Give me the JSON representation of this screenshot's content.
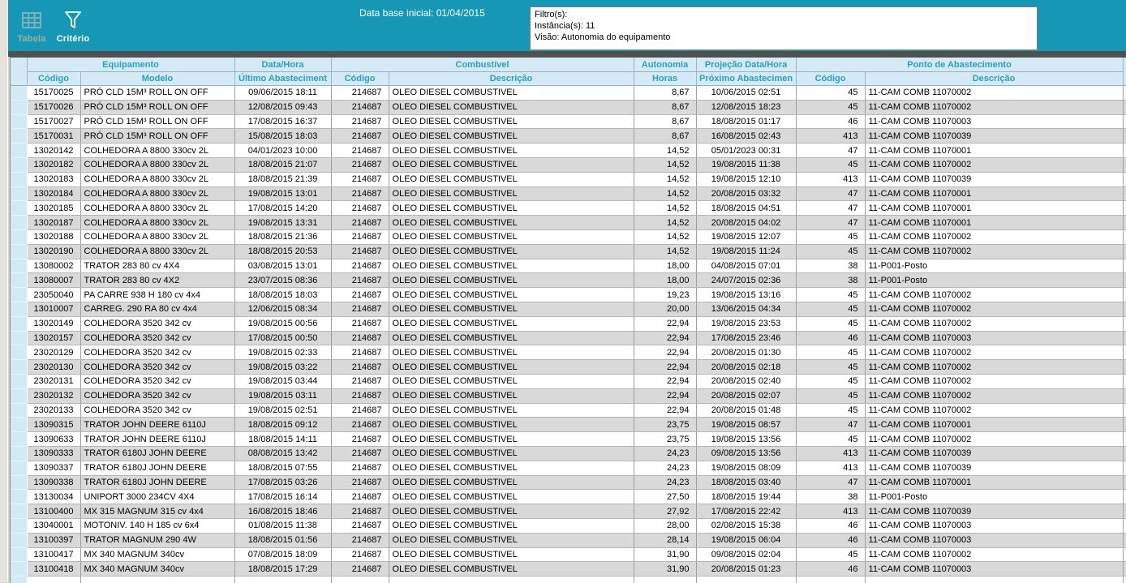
{
  "toolbar": {
    "tabela": "Tabela",
    "criterio": "Critério"
  },
  "topbar": {
    "title": "Data base inicial: 01/04/2015",
    "filter_box": {
      "line1": "Filtro(s):",
      "line2": "Instância(s): 11",
      "line3": "Visão: Autonomia do equipamento"
    }
  },
  "grid": {
    "group_headers": {
      "equipamento": "Equipamento",
      "data_hora": "Data/Hora",
      "combustivel": "Combustível",
      "autonomia": "Autonomia",
      "projecao": "Projeção Data/Hora",
      "ponto": "Ponto de Abastecimento"
    },
    "sub_headers": {
      "equip_codigo": "Código",
      "equip_modelo": "Modelo",
      "ultimo_abastecimento": "Último Abasteciment",
      "comb_codigo": "Código",
      "comb_descricao": "Descrição",
      "autonomia_horas": "Horas",
      "proximo_abastecimento": "Próximo Abastecimen",
      "ponto_codigo": "Código",
      "ponto_descricao": "Descrição"
    },
    "rows": [
      [
        "15170025",
        "PRÓ CLD 15M³ ROLL ON OFF",
        "09/06/2015 18:11",
        "214687",
        "OLEO DIESEL COMBUSTIVEL",
        "8,67",
        "10/06/2015 02:51",
        "45",
        "11-CAM COMB 11070002"
      ],
      [
        "15170026",
        "PRÓ CLD 15M³ ROLL ON OFF",
        "12/08/2015 09:43",
        "214687",
        "OLEO DIESEL COMBUSTIVEL",
        "8,67",
        "12/08/2015 18:23",
        "45",
        "11-CAM COMB 11070002"
      ],
      [
        "15170027",
        "PRÓ CLD 15M³ ROLL ON OFF",
        "17/08/2015 16:37",
        "214687",
        "OLEO DIESEL COMBUSTIVEL",
        "8,67",
        "18/08/2015 01:17",
        "46",
        "11-CAM COMB 11070003"
      ],
      [
        "15170031",
        "PRÓ CLD 15M³ ROLL ON OFF",
        "15/08/2015 18:03",
        "214687",
        "OLEO DIESEL COMBUSTIVEL",
        "8,67",
        "16/08/2015 02:43",
        "413",
        "11-CAM COMB 11070039"
      ],
      [
        "13020142",
        "COLHEDORA A 8800 330cv 2L",
        "04/01/2023 10:00",
        "214687",
        "OLEO DIESEL COMBUSTIVEL",
        "14,52",
        "05/01/2023 00:31",
        "47",
        "11-CAM COMB 11070001"
      ],
      [
        "13020182",
        "COLHEDORA A 8800 330cv 2L",
        "18/08/2015 21:07",
        "214687",
        "OLEO DIESEL COMBUSTIVEL",
        "14,52",
        "19/08/2015 11:38",
        "45",
        "11-CAM COMB 11070002"
      ],
      [
        "13020183",
        "COLHEDORA A 8800 330cv 2L",
        "18/08/2015 21:39",
        "214687",
        "OLEO DIESEL COMBUSTIVEL",
        "14,52",
        "19/08/2015 12:10",
        "413",
        "11-CAM COMB 11070039"
      ],
      [
        "13020184",
        "COLHEDORA A 8800 330cv 2L",
        "19/08/2015 13:01",
        "214687",
        "OLEO DIESEL COMBUSTIVEL",
        "14,52",
        "20/08/2015 03:32",
        "47",
        "11-CAM COMB 11070001"
      ],
      [
        "13020185",
        "COLHEDORA A 8800 330cv 2L",
        "17/08/2015 14:20",
        "214687",
        "OLEO DIESEL COMBUSTIVEL",
        "14,52",
        "18/08/2015 04:51",
        "47",
        "11-CAM COMB 11070001"
      ],
      [
        "13020187",
        "COLHEDORA A 8800 330cv 2L",
        "19/08/2015 13:31",
        "214687",
        "OLEO DIESEL COMBUSTIVEL",
        "14,52",
        "20/08/2015 04:02",
        "47",
        "11-CAM COMB 11070001"
      ],
      [
        "13020188",
        "COLHEDORA A 8800 330cv 2L",
        "18/08/2015 21:36",
        "214687",
        "OLEO DIESEL COMBUSTIVEL",
        "14,52",
        "19/08/2015 12:07",
        "45",
        "11-CAM COMB 11070002"
      ],
      [
        "13020190",
        "COLHEDORA A 8800 330cv 2L",
        "18/08/2015 20:53",
        "214687",
        "OLEO DIESEL COMBUSTIVEL",
        "14,52",
        "19/08/2015 11:24",
        "45",
        "11-CAM COMB 11070002"
      ],
      [
        "13080002",
        "TRATOR 283 80 cv 4X4",
        "03/08/2015 13:01",
        "214687",
        "OLEO DIESEL COMBUSTIVEL",
        "18,00",
        "04/08/2015 07:01",
        "38",
        "11-P001-Posto"
      ],
      [
        "13080007",
        "TRATOR 283 80 cv 4X2",
        "23/07/2015 08:36",
        "214687",
        "OLEO DIESEL COMBUSTIVEL",
        "18,00",
        "24/07/2015 02:36",
        "38",
        "11-P001-Posto"
      ],
      [
        "23050040",
        "PA CARRE 938 H 180 cv 4x4",
        "18/08/2015 18:03",
        "214687",
        "OLEO DIESEL COMBUSTIVEL",
        "19,23",
        "19/08/2015 13:16",
        "45",
        "11-CAM COMB 11070002"
      ],
      [
        "13010007",
        "CARREG. 290 RA 80 cv 4x4",
        "12/06/2015 08:34",
        "214687",
        "OLEO DIESEL COMBUSTIVEL",
        "20,00",
        "13/06/2015 04:34",
        "45",
        "11-CAM COMB 11070002"
      ],
      [
        "13020149",
        "COLHEDORA 3520 342 cv",
        "19/08/2015 00:56",
        "214687",
        "OLEO DIESEL COMBUSTIVEL",
        "22,94",
        "19/08/2015 23:53",
        "45",
        "11-CAM COMB 11070002"
      ],
      [
        "13020157",
        "COLHEDORA 3520 342 cv",
        "17/08/2015 00:50",
        "214687",
        "OLEO DIESEL COMBUSTIVEL",
        "22,94",
        "17/08/2015 23:46",
        "46",
        "11-CAM COMB 11070003"
      ],
      [
        "23020129",
        "COLHEDORA 3520 342 cv",
        "19/08/2015 02:33",
        "214687",
        "OLEO DIESEL COMBUSTIVEL",
        "22,94",
        "20/08/2015 01:30",
        "45",
        "11-CAM COMB 11070002"
      ],
      [
        "23020130",
        "COLHEDORA 3520 342 cv",
        "19/08/2015 03:22",
        "214687",
        "OLEO DIESEL COMBUSTIVEL",
        "22,94",
        "20/08/2015 02:18",
        "45",
        "11-CAM COMB 11070002"
      ],
      [
        "23020131",
        "COLHEDORA 3520 342 cv",
        "19/08/2015 03:44",
        "214687",
        "OLEO DIESEL COMBUSTIVEL",
        "22,94",
        "20/08/2015 02:40",
        "45",
        "11-CAM COMB 11070002"
      ],
      [
        "23020132",
        "COLHEDORA 3520 342 cv",
        "19/08/2015 03:11",
        "214687",
        "OLEO DIESEL COMBUSTIVEL",
        "22,94",
        "20/08/2015 02:07",
        "45",
        "11-CAM COMB 11070002"
      ],
      [
        "23020133",
        "COLHEDORA 3520 342 cv",
        "19/08/2015 02:51",
        "214687",
        "OLEO DIESEL COMBUSTIVEL",
        "22,94",
        "20/08/2015 01:48",
        "45",
        "11-CAM COMB 11070002"
      ],
      [
        "13090315",
        "TRATOR JOHN DEERE 6110J",
        "18/08/2015 09:12",
        "214687",
        "OLEO DIESEL COMBUSTIVEL",
        "23,75",
        "19/08/2015 08:57",
        "47",
        "11-CAM COMB 11070001"
      ],
      [
        "13090633",
        "TRATOR JOHN DEERE 6110J",
        "18/08/2015 14:11",
        "214687",
        "OLEO DIESEL COMBUSTIVEL",
        "23,75",
        "19/08/2015 13:56",
        "45",
        "11-CAM COMB 11070002"
      ],
      [
        "13090333",
        "TRATOR 6180J JOHN DEERE",
        "08/08/2015 13:42",
        "214687",
        "OLEO DIESEL COMBUSTIVEL",
        "24,23",
        "09/08/2015 13:56",
        "413",
        "11-CAM COMB 11070039"
      ],
      [
        "13090337",
        "TRATOR 6180J JOHN DEERE",
        "18/08/2015 07:55",
        "214687",
        "OLEO DIESEL COMBUSTIVEL",
        "24,23",
        "19/08/2015 08:09",
        "413",
        "11-CAM COMB 11070039"
      ],
      [
        "13090338",
        "TRATOR 6180J JOHN DEERE",
        "17/08/2015 03:26",
        "214687",
        "OLEO DIESEL COMBUSTIVEL",
        "24,23",
        "18/08/2015 03:40",
        "47",
        "11-CAM COMB 11070001"
      ],
      [
        "13130034",
        "UNIPORT 3000 234CV 4X4",
        "17/08/2015 16:14",
        "214687",
        "OLEO DIESEL COMBUSTIVEL",
        "27,50",
        "18/08/2015 19:44",
        "38",
        "11-P001-Posto"
      ],
      [
        "13100400",
        "MX 315 MAGNUM 315 cv 4x4",
        "16/08/2015 18:46",
        "214687",
        "OLEO DIESEL COMBUSTIVEL",
        "27,92",
        "17/08/2015 22:42",
        "413",
        "11-CAM COMB 11070039"
      ],
      [
        "13040001",
        "MOTONIV. 140 H 185 cv 6x4",
        "01/08/2015 11:38",
        "214687",
        "OLEO DIESEL COMBUSTIVEL",
        "28,00",
        "02/08/2015 15:38",
        "46",
        "11-CAM COMB 11070003"
      ],
      [
        "13100397",
        "TRATOR MAGNUM 290 4W",
        "18/08/2015 01:56",
        "214687",
        "OLEO DIESEL COMBUSTIVEL",
        "28,14",
        "19/08/2015 06:04",
        "46",
        "11-CAM COMB 11070003"
      ],
      [
        "13100417",
        "MX 340 MAGNUM 340cv",
        "07/08/2015 18:09",
        "214687",
        "OLEO DIESEL COMBUSTIVEL",
        "31,90",
        "09/08/2015 02:04",
        "45",
        "11-CAM COMB 11070002"
      ],
      [
        "13100418",
        "MX 340 MAGNUM 340cv",
        "18/08/2015 17:29",
        "214687",
        "OLEO DIESEL COMBUSTIVEL",
        "31,90",
        "20/08/2015 01:23",
        "46",
        "11-CAM COMB 11070003"
      ]
    ]
  },
  "colors": {
    "toolbar_teal": "#1597B5",
    "dark_band": "#4F4F4F",
    "header_bg": "#D5EAF5",
    "header_text": "#2A9FC2",
    "row_alt_gray": "#D9D9D9",
    "selector_blue": "#D3E9F4"
  }
}
